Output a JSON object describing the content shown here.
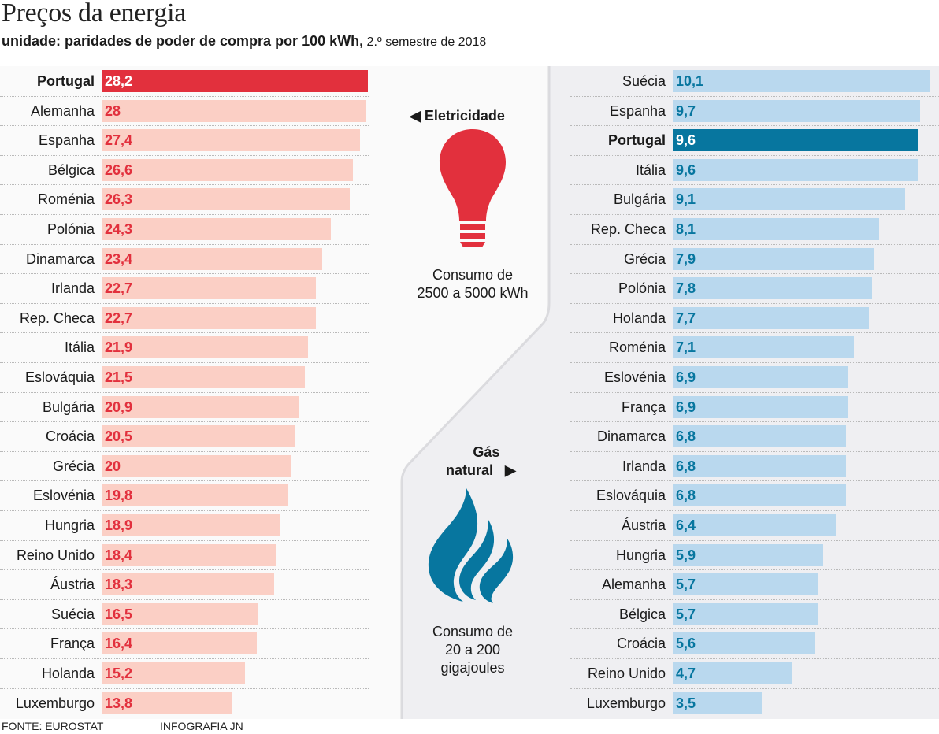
{
  "title": "Preços da energia",
  "subtitle_bold": "unidade: paridades de poder de compra por 100 kWh,",
  "subtitle_rest": " 2.º semestre de 2018",
  "footer": {
    "source": "FONTE: EUROSTAT",
    "credit": "INFOGRAFIA JN"
  },
  "colors": {
    "elec_highlight": "#e2303d",
    "elec_bar": "#fbcfc5",
    "elec_value": "#e2303d",
    "gas_highlight": "#07769f",
    "gas_bar": "#b9d8ee",
    "gas_value": "#07769f",
    "panel_left": "#fafafa",
    "panel_right": "#efeff2"
  },
  "center": {
    "electricity": {
      "arrow": "◀",
      "label": "Eletricidade",
      "icon": "lightbulb-icon",
      "line1": "Consumo de",
      "line2": "2500 a 5000 kWh"
    },
    "gas": {
      "label1": "Gás",
      "label2": "natural",
      "arrow": "▶",
      "icon": "flame-icon",
      "line1": "Consumo de",
      "line2": "20 a 200",
      "line3": "gigajoules"
    }
  },
  "chart_data": [
    {
      "type": "bar",
      "orientation": "horizontal",
      "title": "Eletricidade",
      "subtitle": "Consumo de 2500 a 5000 kWh",
      "unit": "paridades de poder de compra por 100 kWh",
      "highlight": "Portugal",
      "xlim": [
        0,
        28.2
      ],
      "categories": [
        "Portugal",
        "Alemanha",
        "Espanha",
        "Bélgica",
        "Roménia",
        "Polónia",
        "Dinamarca",
        "Irlanda",
        "Rep. Checa",
        "Itália",
        "Eslováquia",
        "Bulgária",
        "Croácia",
        "Grécia",
        "Eslovénia",
        "Hungria",
        "Reino Unido",
        "Áustria",
        "Suécia",
        "França",
        "Holanda",
        "Luxemburgo"
      ],
      "values": [
        28.2,
        28,
        27.4,
        26.6,
        26.3,
        24.3,
        23.4,
        22.7,
        22.7,
        21.9,
        21.5,
        20.9,
        20.5,
        20,
        19.8,
        18.9,
        18.4,
        18.3,
        16.5,
        16.4,
        15.2,
        13.8
      ],
      "labels": [
        "28,2",
        "28",
        "27,4",
        "26,6",
        "26,3",
        "24,3",
        "23,4",
        "22,7",
        "22,7",
        "21,9",
        "21,5",
        "20,9",
        "20,5",
        "20",
        "19,8",
        "18,9",
        "18,4",
        "18,3",
        "16,5",
        "16,4",
        "15,2",
        "13,8"
      ]
    },
    {
      "type": "bar",
      "orientation": "horizontal",
      "title": "Gás natural",
      "subtitle": "Consumo de 20 a 200 gigajoules",
      "unit": "paridades de poder de compra por 100 kWh",
      "highlight": "Portugal",
      "xlim": [
        0,
        10.1
      ],
      "categories": [
        "Suécia",
        "Espanha",
        "Portugal",
        "Itália",
        "Bulgária",
        "Rep. Checa",
        "Grécia",
        "Polónia",
        "Holanda",
        "Roménia",
        "Eslovénia",
        "França",
        "Dinamarca",
        "Irlanda",
        "Eslováquia",
        "Áustria",
        "Hungria",
        "Alemanha",
        "Bélgica",
        "Croácia",
        "Reino Unido",
        "Luxemburgo"
      ],
      "values": [
        10.1,
        9.7,
        9.6,
        9.6,
        9.1,
        8.1,
        7.9,
        7.8,
        7.7,
        7.1,
        6.9,
        6.9,
        6.8,
        6.8,
        6.8,
        6.4,
        5.9,
        5.7,
        5.7,
        5.6,
        4.7,
        3.5
      ],
      "labels": [
        "10,1",
        "9,7",
        "9,6",
        "9,6",
        "9,1",
        "8,1",
        "7,9",
        "7,8",
        "7,7",
        "7,1",
        "6,9",
        "6,9",
        "6,8",
        "6,8",
        "6,8",
        "6,4",
        "5,9",
        "5,7",
        "5,7",
        "5,6",
        "4,7",
        "3,5"
      ]
    }
  ]
}
